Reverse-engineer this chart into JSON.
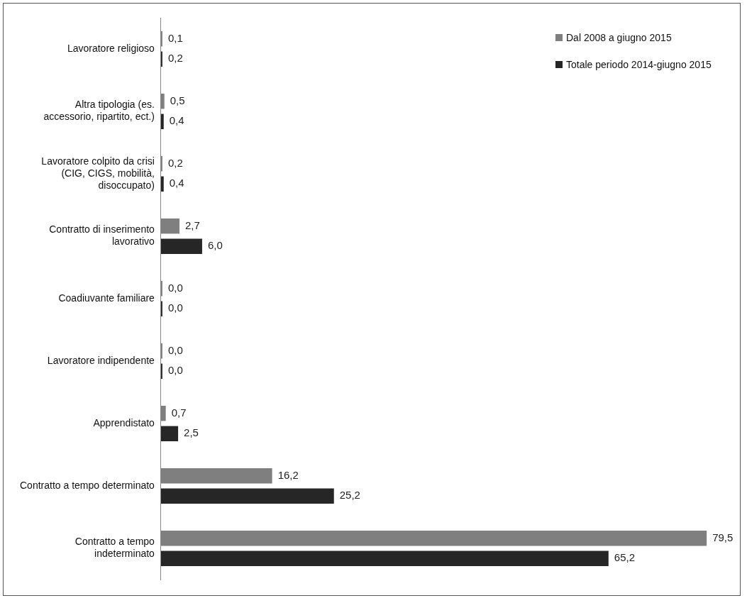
{
  "chart_data": {
    "type": "bar",
    "orientation": "horizontal",
    "categories": [
      "Lavoratore religioso",
      "Altra tipologia (es. accessorio, ripartito, ect.)",
      "Lavoratore colpito da crisi (CIG, CIGS, mobilità, disoccupato)",
      "Contratto di inserimento lavorativo",
      "Coadiuvante familiare",
      "Lavoratore indipendente",
      "Apprendistato",
      "Contratto a tempo determinato",
      "Contratto a tempo indeterminato"
    ],
    "series": [
      {
        "name": "Dal 2008 a giugno 2015",
        "color": "#7f7f7f",
        "values": [
          0.1,
          0.5,
          0.2,
          2.7,
          0.0,
          0.0,
          0.7,
          16.2,
          79.5
        ],
        "value_labels": [
          "0,1",
          "0,5",
          "0,2",
          "2,7",
          "0,0",
          "0,0",
          "0,7",
          "16,2",
          "79,5"
        ]
      },
      {
        "name": "Totale periodo 2014-giugno 2015",
        "color": "#262626",
        "values": [
          0.2,
          0.4,
          0.4,
          6.0,
          0.0,
          0.0,
          2.5,
          25.2,
          65.2
        ],
        "value_labels": [
          "0,2",
          "0,4",
          "0,4",
          "6,0",
          "0,0",
          "0,0",
          "2,5",
          "25,2",
          "65,2"
        ]
      }
    ],
    "legend": "top right",
    "tick_labels": "y"
  }
}
